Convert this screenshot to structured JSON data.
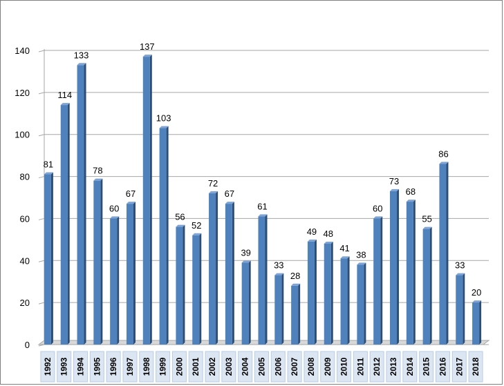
{
  "chart_data": {
    "type": "bar",
    "title": "",
    "xlabel": "",
    "ylabel": "",
    "categories": [
      "1992",
      "1993",
      "1994",
      "1995",
      "1996",
      "1997",
      "1998",
      "1999",
      "2000",
      "2001",
      "2002",
      "2003",
      "2004",
      "2005",
      "2006",
      "2007",
      "2008",
      "2009",
      "2010",
      "2011",
      "2012",
      "2013",
      "2014",
      "2015",
      "2016",
      "2017",
      "2018"
    ],
    "values": [
      81,
      114,
      133,
      78,
      60,
      67,
      137,
      103,
      56,
      52,
      72,
      67,
      39,
      61,
      33,
      28,
      49,
      48,
      41,
      38,
      60,
      73,
      68,
      55,
      86,
      33,
      20
    ],
    "ylim": [
      0,
      140
    ],
    "yticks": [
      0,
      20,
      40,
      60,
      80,
      100,
      120,
      140
    ],
    "grid": true,
    "legend": "none",
    "colors": {
      "bar_front": "#4f81bd",
      "bar_side": "#2c4d75",
      "bar_top": "#7ea3d4",
      "gridline": "#a6a6a6",
      "axis_floor": "#d9d9d9",
      "category_box": "#dce6f2"
    }
  }
}
